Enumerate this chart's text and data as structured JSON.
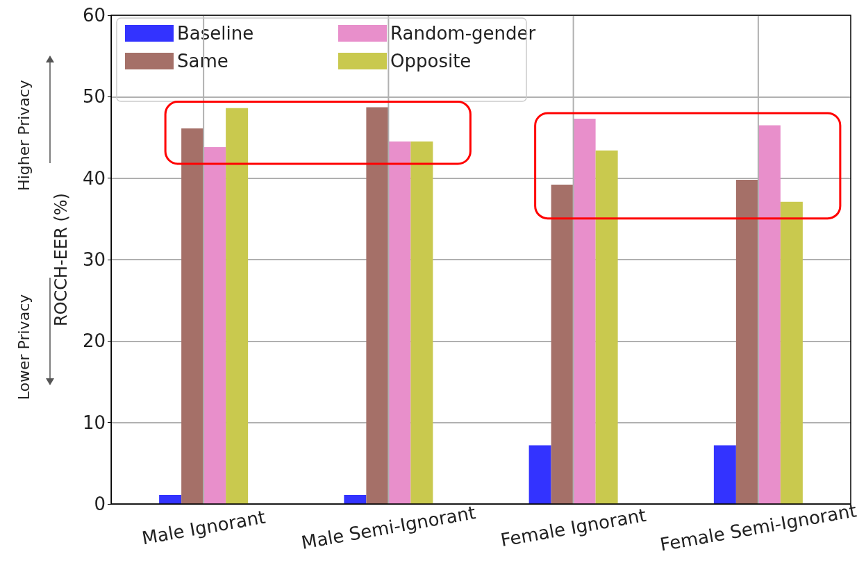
{
  "chart_data": {
    "type": "bar",
    "ylabel": "ROCCH-EER (%)",
    "categories": [
      "Male Ignorant",
      "Male Semi-Ignorant",
      "Female Ignorant",
      "Female Semi-Ignorant"
    ],
    "series": [
      {
        "name": "Baseline",
        "color": "#3333ff",
        "values": [
          1.1,
          1.1,
          7.2,
          7.2
        ]
      },
      {
        "name": "Same",
        "color": "#a57068",
        "values": [
          46.1,
          48.7,
          39.2,
          39.8
        ]
      },
      {
        "name": "Random-gender",
        "color": "#e88fcb",
        "values": [
          43.8,
          44.5,
          47.3,
          46.5
        ]
      },
      {
        "name": "Opposite",
        "color": "#c9c94e",
        "values": [
          48.6,
          44.5,
          43.4,
          37.1
        ]
      }
    ],
    "ylim": [
      0,
      60
    ],
    "yticks": [
      0,
      10,
      20,
      30,
      40,
      50,
      60
    ],
    "grid": true,
    "legend": "top left",
    "annotations": [
      "Higher Privacy",
      "Lower Privacy"
    ]
  }
}
